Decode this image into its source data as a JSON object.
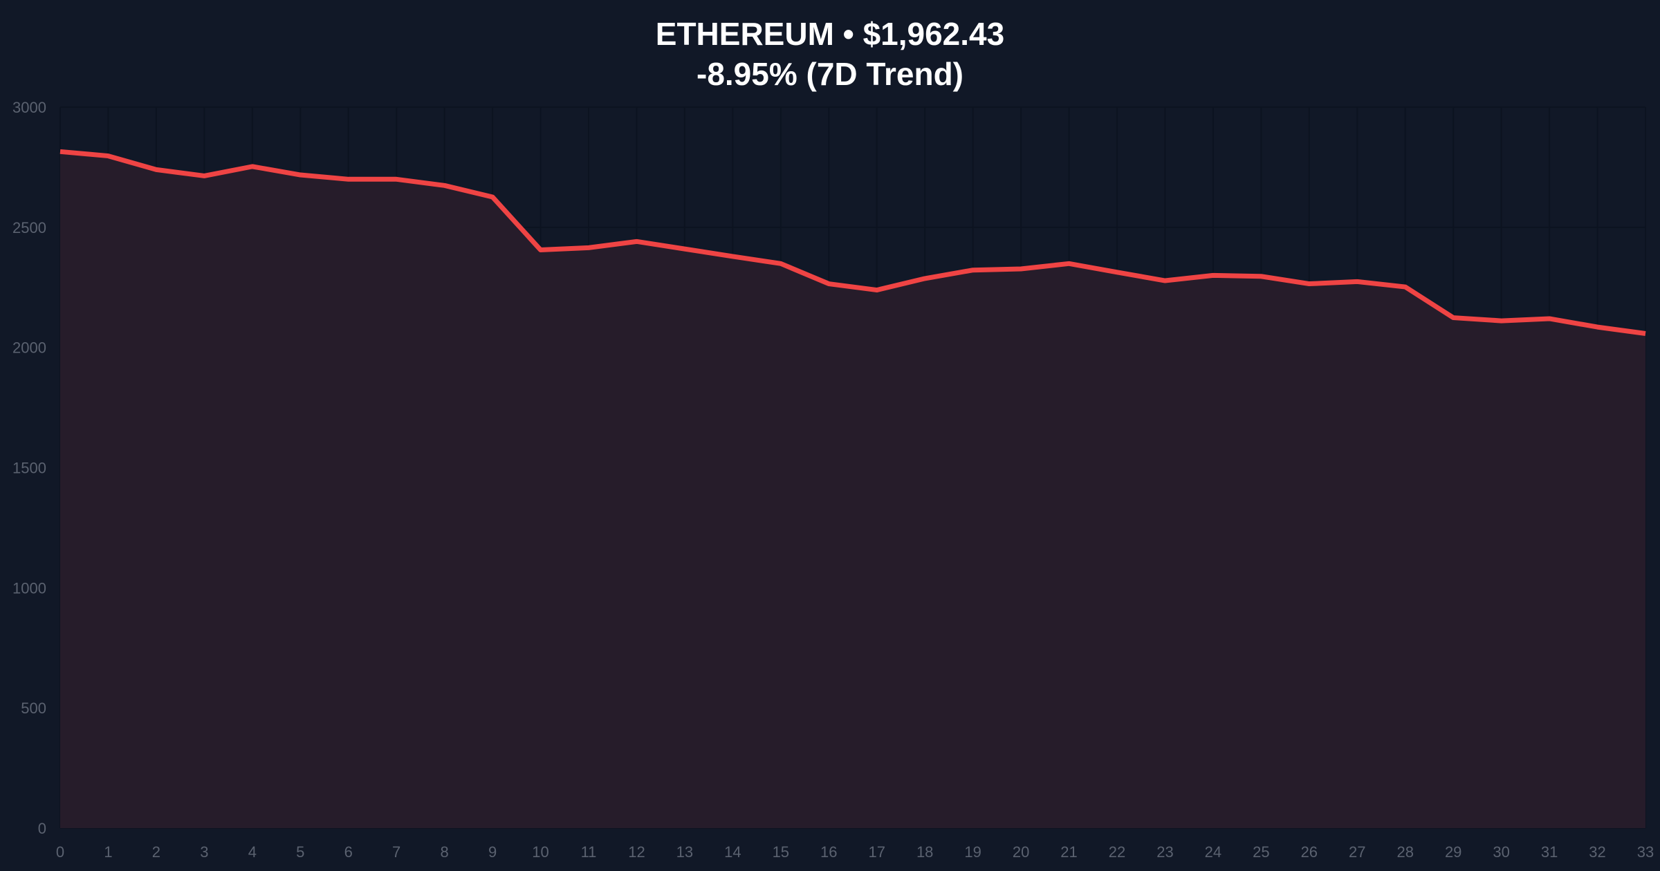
{
  "chart_data": {
    "type": "area",
    "title": "ETHEREUM • $1,962.43",
    "subtitle": "-8.95% (7D Trend)",
    "xlabel": "",
    "ylabel": "",
    "x": [
      0,
      1,
      2,
      3,
      4,
      5,
      6,
      7,
      8,
      9,
      10,
      11,
      12,
      13,
      14,
      15,
      16,
      17,
      18,
      19,
      20,
      21,
      22,
      23,
      24,
      25,
      26,
      27,
      28,
      29,
      30,
      31,
      32,
      33
    ],
    "values": [
      2815,
      2797,
      2740,
      2714,
      2753,
      2718,
      2700,
      2700,
      2674,
      2626,
      2406,
      2415,
      2441,
      2410,
      2379,
      2349,
      2265,
      2239,
      2287,
      2322,
      2327,
      2349,
      2313,
      2278,
      2300,
      2296,
      2265,
      2274,
      2252,
      2124,
      2111,
      2120,
      2085,
      2058
    ],
    "ylim": [
      0,
      3000
    ],
    "xlim": [
      0,
      33
    ],
    "yticks": [
      0,
      500,
      1000,
      1500,
      2000,
      2500,
      3000
    ],
    "grid": true,
    "colors": {
      "line": "#ef4444",
      "fill": "#261c2a",
      "background": "#111827",
      "text": "#ffffff",
      "tick": "#5b6270"
    }
  }
}
